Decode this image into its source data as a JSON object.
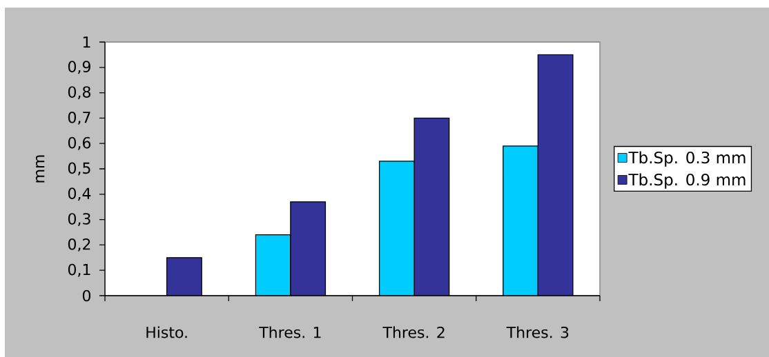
{
  "chart_data": {
    "type": "bar",
    "ylabel": "mm",
    "categories": [
      "Histo.",
      "Thres. 1",
      "Thres. 2",
      "Thres. 3"
    ],
    "series": [
      {
        "name": "Tb.Sp. 0.3 mm",
        "color": "#00ccff",
        "values": [
          null,
          0.24,
          0.53,
          0.59
        ]
      },
      {
        "name": "Tb.Sp. 0.9 mm",
        "color": "#333399",
        "values": [
          0.15,
          0.37,
          0.7,
          0.95
        ]
      }
    ],
    "ylim": [
      0,
      1
    ],
    "yticks": [
      0,
      {
        "value": 0.1,
        "label": "0,1"
      },
      {
        "value": 0.2,
        "label": "0,2"
      },
      {
        "value": 0.3,
        "label": "0,3"
      },
      {
        "value": 0.4,
        "label": "0,4"
      },
      {
        "value": 0.5,
        "label": "0,5"
      },
      {
        "value": 0.6,
        "label": "0,6"
      },
      {
        "value": 0.7,
        "label": "0,7"
      },
      {
        "value": 0.8,
        "label": "0,8"
      },
      {
        "value": 0.9,
        "label": "0,9"
      },
      1
    ],
    "legend": "right"
  }
}
